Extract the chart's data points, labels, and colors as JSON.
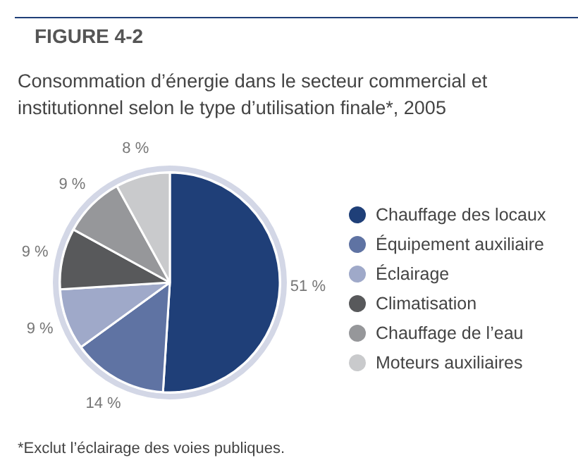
{
  "chart_data": {
    "type": "pie",
    "title": "FIGURE 4-2",
    "subtitle": "Consommation d’énergie dans le secteur commercial et institutionnel selon le type d’utilisation finale*, 2005",
    "categories": [
      "Chauffage des locaux",
      "Équipement auxiliaire",
      "Éclairage",
      "Climatisation",
      "Chauffage de l’eau",
      "Moteurs auxiliaires"
    ],
    "values": [
      51,
      14,
      9,
      9,
      9,
      8
    ],
    "value_labels": [
      "51 %",
      "14 %",
      "9 %",
      "9 %",
      "9 %",
      "8 %"
    ],
    "colors": [
      "#1f3f78",
      "#5f73a3",
      "#9fa9c9",
      "#58595b",
      "#96979a",
      "#c9cacc"
    ],
    "legend": "right",
    "annotations": [
      "*Exclut l’éclairage des voies publiques."
    ]
  }
}
